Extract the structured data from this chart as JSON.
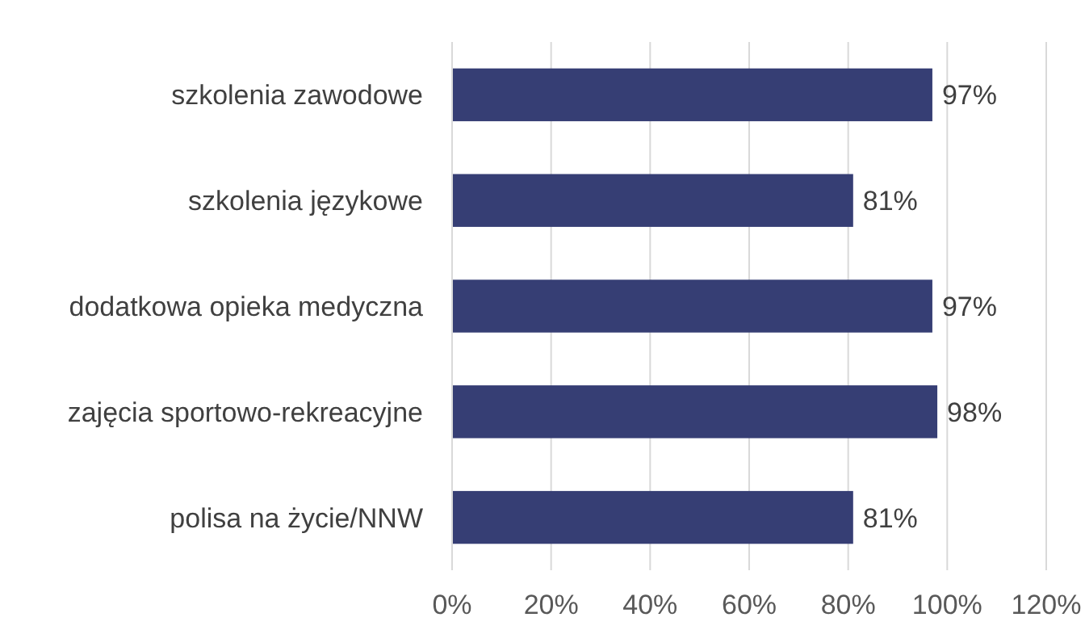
{
  "chart_data": {
    "type": "bar",
    "orientation": "horizontal",
    "categories": [
      "szkolenia zawodowe",
      "szkolenia językowe",
      "dodatkowa opieka medyczna",
      "zajęcia sportowo-rekreacyjne",
      "polisa na życie/NNW"
    ],
    "values": [
      97,
      81,
      97,
      98,
      81
    ],
    "value_labels": [
      "97%",
      "81%",
      "97%",
      "98%",
      "81%"
    ],
    "color": "#363e74",
    "xlim": [
      0,
      120
    ],
    "xticks": [
      {
        "value": 0,
        "label": "0%"
      },
      {
        "value": 20,
        "label": "20%"
      },
      {
        "value": 40,
        "label": "40%"
      },
      {
        "value": 60,
        "label": "60%"
      },
      {
        "value": 80,
        "label": "80%"
      },
      {
        "value": 100,
        "label": "100%"
      },
      {
        "value": 120,
        "label": "120%"
      }
    ],
    "grid": "x"
  }
}
